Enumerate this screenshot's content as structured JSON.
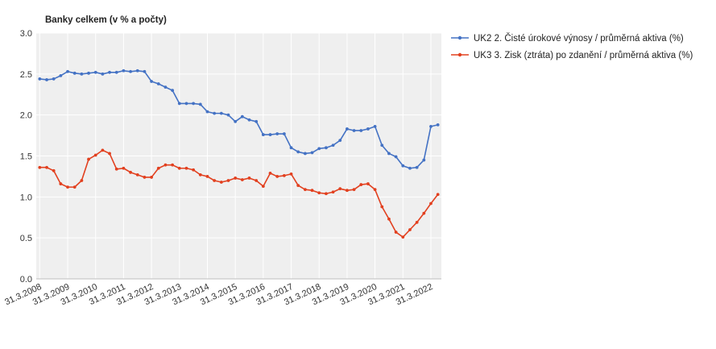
{
  "chart_data": {
    "type": "line",
    "title": "Banky celkem (v % a počty)",
    "xlabel": "",
    "ylabel": "",
    "ylim": [
      0,
      3
    ],
    "yticks": [
      "0.0",
      "0.5",
      "1.0",
      "1.5",
      "2.0",
      "2.5",
      "3.0"
    ],
    "xticks": [
      "31.3.2008",
      "31.3.2009",
      "31.3.2010",
      "31.3.2011",
      "31.3.2012",
      "31.3.2013",
      "31.3.2014",
      "31.3.2015",
      "31.3.2016",
      "31.3.2017",
      "31.3.2018",
      "31.3.2019",
      "31.3.2020",
      "31.3.2021",
      "31.3.2022"
    ],
    "x_start": "31.3.2008",
    "x_end": "30.6.2022",
    "x_frequency": "quarterly",
    "grid": true,
    "legend_position": "right",
    "series": [
      {
        "name": "UK2 2. Čisté úrokové výnosy / průměrná aktiva (%)",
        "color": "#4472c4",
        "values": [
          2.44,
          2.43,
          2.44,
          2.48,
          2.53,
          2.51,
          2.5,
          2.51,
          2.52,
          2.5,
          2.52,
          2.52,
          2.54,
          2.53,
          2.54,
          2.53,
          2.41,
          2.38,
          2.34,
          2.3,
          2.14,
          2.14,
          2.14,
          2.13,
          2.04,
          2.02,
          2.02,
          2.0,
          1.92,
          1.98,
          1.94,
          1.92,
          1.76,
          1.76,
          1.77,
          1.77,
          1.6,
          1.55,
          1.53,
          1.54,
          1.59,
          1.6,
          1.63,
          1.69,
          1.83,
          1.81,
          1.81,
          1.83,
          1.86,
          1.63,
          1.53,
          1.49,
          1.38,
          1.35,
          1.36,
          1.45,
          1.86,
          1.88
        ]
      },
      {
        "name": "UK3 3. Zisk (ztráta) po zdanění / průměrná aktiva (%)",
        "color": "#e2401f",
        "values": [
          1.36,
          1.36,
          1.32,
          1.16,
          1.12,
          1.12,
          1.2,
          1.46,
          1.51,
          1.57,
          1.53,
          1.34,
          1.35,
          1.3,
          1.27,
          1.24,
          1.24,
          1.35,
          1.39,
          1.39,
          1.35,
          1.35,
          1.33,
          1.27,
          1.25,
          1.2,
          1.18,
          1.2,
          1.23,
          1.21,
          1.23,
          1.2,
          1.13,
          1.29,
          1.25,
          1.26,
          1.28,
          1.14,
          1.09,
          1.08,
          1.05,
          1.04,
          1.06,
          1.1,
          1.08,
          1.09,
          1.15,
          1.16,
          1.09,
          0.88,
          0.73,
          0.57,
          0.51,
          0.6,
          0.69,
          0.8,
          0.92,
          1.03
        ]
      }
    ]
  }
}
